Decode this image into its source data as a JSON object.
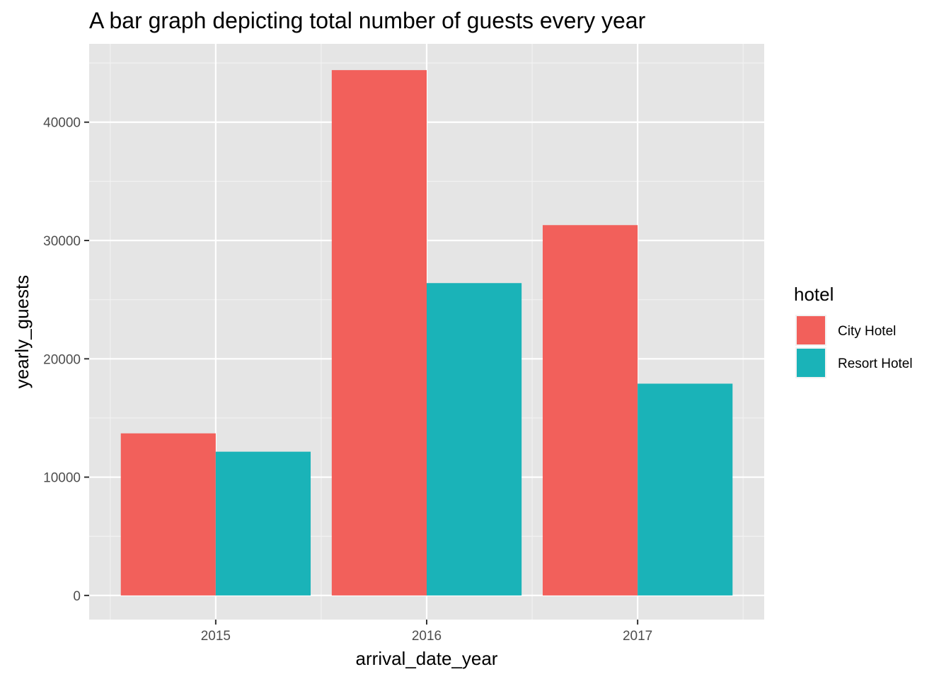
{
  "chart_data": {
    "type": "bar",
    "title": "A bar graph depicting total number of guests every year",
    "xlabel": "arrival_date_year",
    "ylabel": "yearly_guests",
    "categories": [
      "2015",
      "2016",
      "2017"
    ],
    "series": [
      {
        "name": "City Hotel",
        "color": "#F2605B",
        "values": [
          13700,
          44400,
          31300
        ]
      },
      {
        "name": "Resort Hotel",
        "color": "#1AB3B8",
        "values": [
          12150,
          26400,
          17900
        ]
      }
    ],
    "yticks": [
      0,
      10000,
      20000,
      30000,
      40000
    ],
    "ytick_labels": [
      "0",
      "10000",
      "20000",
      "30000",
      "40000"
    ],
    "ylim": [
      -2040,
      46620
    ],
    "grid": true,
    "background": "#E5E5E5",
    "legend": {
      "title": "hotel",
      "placement": "right"
    }
  }
}
